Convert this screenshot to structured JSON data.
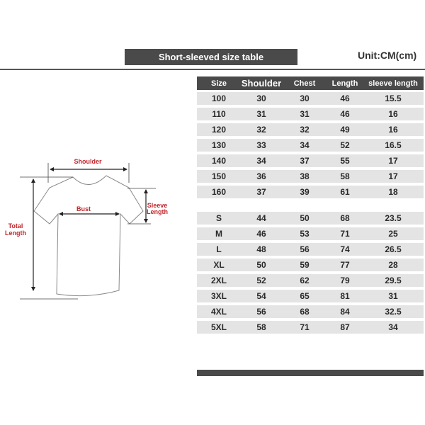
{
  "title": "Short-sleeved size table",
  "unit": "Unit:CM(cm)",
  "table": {
    "headers": [
      "Size",
      "Shoulder",
      "Chest",
      "Length",
      "sleeve length"
    ],
    "kids_rows": [
      [
        "100",
        "30",
        "30",
        "46",
        "15.5"
      ],
      [
        "110",
        "31",
        "31",
        "46",
        "16"
      ],
      [
        "120",
        "32",
        "32",
        "49",
        "16"
      ],
      [
        "130",
        "33",
        "34",
        "52",
        "16.5"
      ],
      [
        "140",
        "34",
        "37",
        "55",
        "17"
      ],
      [
        "150",
        "36",
        "38",
        "58",
        "17"
      ],
      [
        "160",
        "37",
        "39",
        "61",
        "18"
      ]
    ],
    "adult_rows": [
      [
        "S",
        "44",
        "50",
        "68",
        "23.5"
      ],
      [
        "M",
        "46",
        "53",
        "71",
        "25"
      ],
      [
        "L",
        "48",
        "56",
        "74",
        "26.5"
      ],
      [
        "XL",
        "50",
        "59",
        "77",
        "28"
      ],
      [
        "2XL",
        "52",
        "62",
        "79",
        "29.5"
      ],
      [
        "3XL",
        "54",
        "65",
        "81",
        "31"
      ],
      [
        "4XL",
        "56",
        "68",
        "84",
        "32.5"
      ],
      [
        "5XL",
        "58",
        "71",
        "87",
        "34"
      ]
    ]
  },
  "diagram": {
    "shoulder": "Shoulder",
    "bust": "Bust",
    "total_length": [
      "Total",
      "Length"
    ],
    "sleeve_length": [
      "Sleeve",
      "Length"
    ],
    "label_color": "#c0262c"
  }
}
